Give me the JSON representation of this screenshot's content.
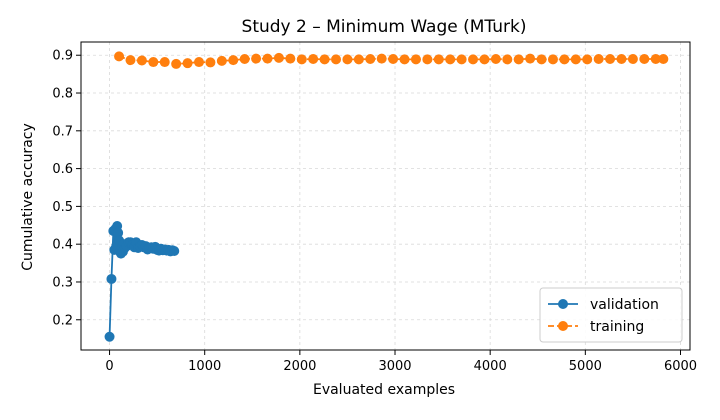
{
  "chart_data": {
    "type": "line",
    "title": "Study 2 – Minimum Wage (MTurk)",
    "xlabel": "Evaluated examples",
    "ylabel": "Cumulative accuracy",
    "xlim": [
      -300,
      6100
    ],
    "ylim": [
      0.12,
      0.935
    ],
    "xticks": [
      0,
      1000,
      2000,
      3000,
      4000,
      5000,
      6000
    ],
    "yticks": [
      0.2,
      0.3,
      0.4,
      0.5,
      0.6,
      0.7,
      0.8,
      0.9
    ],
    "grid": true,
    "legend_position": "bottom-right",
    "series": [
      {
        "name": "validation",
        "color": "#1f77b4",
        "line_style": "solid",
        "marker": "circle",
        "x": [
          0,
          20,
          40,
          50,
          60,
          70,
          80,
          90,
          100,
          110,
          120,
          130,
          140,
          150,
          160,
          180,
          200,
          220,
          240,
          260,
          280,
          300,
          320,
          340,
          360,
          380,
          400,
          420,
          440,
          460,
          480,
          500,
          520,
          540,
          560,
          580,
          600,
          620,
          640,
          660,
          680
        ],
        "y": [
          0.155,
          0.308,
          0.435,
          0.385,
          0.44,
          0.395,
          0.448,
          0.43,
          0.41,
          0.38,
          0.375,
          0.39,
          0.38,
          0.4,
          0.39,
          0.395,
          0.405,
          0.405,
          0.398,
          0.392,
          0.405,
          0.39,
          0.395,
          0.398,
          0.392,
          0.395,
          0.386,
          0.39,
          0.392,
          0.388,
          0.393,
          0.385,
          0.383,
          0.388,
          0.384,
          0.386,
          0.383,
          0.385,
          0.381,
          0.384,
          0.382
        ]
      },
      {
        "name": "training",
        "color": "#ff7f0e",
        "line_style": "dashed",
        "marker": "circle",
        "x": [
          100,
          220,
          340,
          460,
          580,
          700,
          820,
          940,
          1060,
          1180,
          1300,
          1420,
          1540,
          1660,
          1780,
          1900,
          2020,
          2140,
          2260,
          2380,
          2500,
          2620,
          2740,
          2860,
          2980,
          3100,
          3220,
          3340,
          3460,
          3580,
          3700,
          3820,
          3940,
          4060,
          4180,
          4300,
          4420,
          4540,
          4660,
          4780,
          4900,
          5020,
          5140,
          5260,
          5380,
          5500,
          5620,
          5740,
          5820
        ],
        "y": [
          0.897,
          0.887,
          0.886,
          0.882,
          0.882,
          0.877,
          0.879,
          0.882,
          0.881,
          0.885,
          0.887,
          0.89,
          0.891,
          0.891,
          0.893,
          0.891,
          0.889,
          0.89,
          0.889,
          0.889,
          0.889,
          0.889,
          0.89,
          0.891,
          0.89,
          0.889,
          0.889,
          0.889,
          0.889,
          0.889,
          0.889,
          0.889,
          0.889,
          0.89,
          0.889,
          0.889,
          0.891,
          0.889,
          0.889,
          0.889,
          0.889,
          0.889,
          0.89,
          0.89,
          0.89,
          0.89,
          0.89,
          0.89,
          0.89
        ]
      }
    ]
  }
}
